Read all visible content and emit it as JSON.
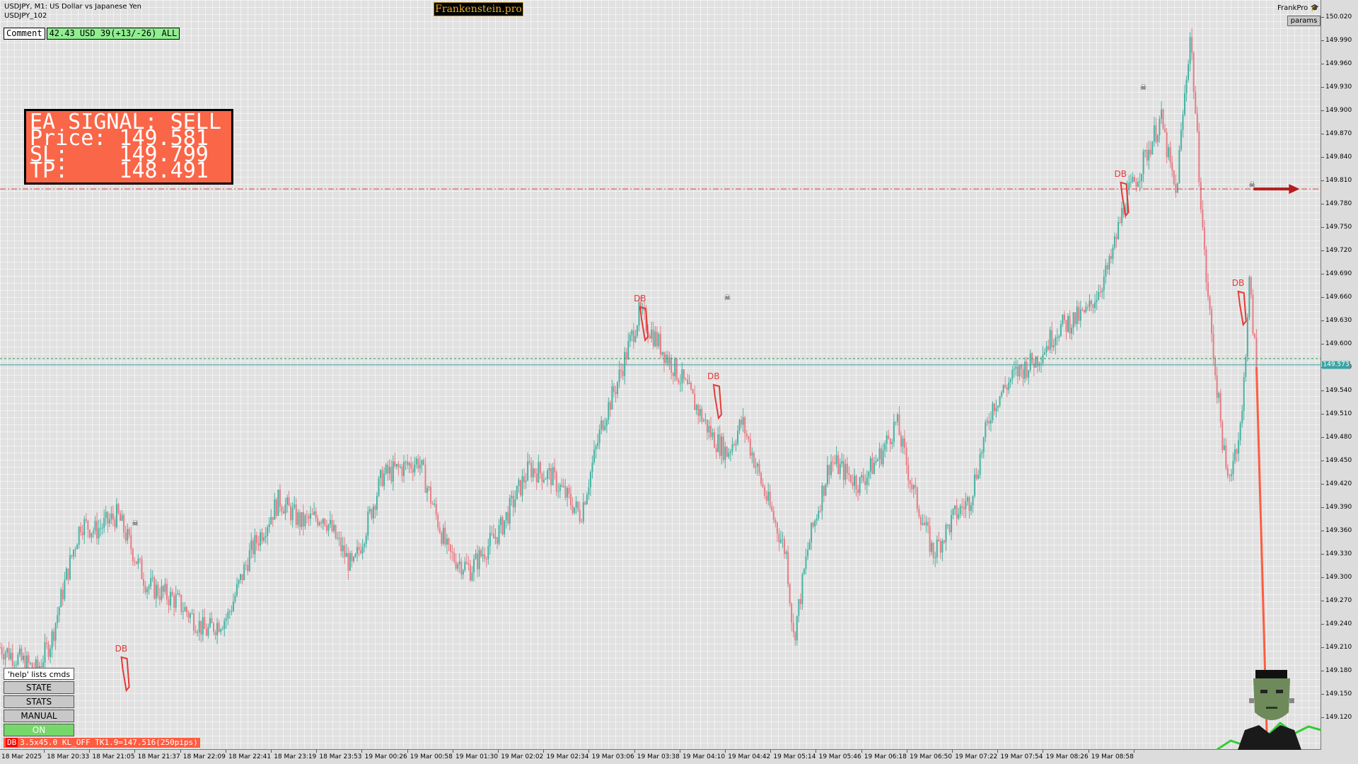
{
  "header": {
    "symbol_line": "USDJPY, M1:  US Dollar vs Japanese Yen",
    "chart_id": "USDJPY_102",
    "brand": "Frankenstein.pro",
    "account_label": "FrankPro",
    "params_button": "params"
  },
  "comment": {
    "label": "Comment",
    "stats": "42.43 USD 39(+13/-26) ALL"
  },
  "signal": {
    "line1": "EA SIGNAL: SELL",
    "line2": "Price: 149.581",
    "line3": "SL:    149.799",
    "line4": "TP:    148.491"
  },
  "commands": {
    "help": "'help' lists cmds",
    "state": "STATE",
    "stats": "STATS",
    "manual": "MANUAL",
    "on": "ON"
  },
  "status": {
    "db_tag": "DB",
    "text": "3.5x45.0 KL_OFF TK1.9=147.516(250pips)"
  },
  "pattern_label": "DB",
  "y_axis": {
    "labels": [
      "150.020",
      "149.990",
      "149.960",
      "149.930",
      "149.900",
      "149.870",
      "149.840",
      "149.810",
      "149.780",
      "149.750",
      "149.720",
      "149.690",
      "149.660",
      "149.630",
      "149.600",
      "149.570",
      "149.540",
      "149.510",
      "149.480",
      "149.450",
      "149.420",
      "149.390",
      "149.360",
      "149.330",
      "149.300",
      "149.270",
      "149.240",
      "149.210",
      "149.180",
      "149.150",
      "149.120"
    ],
    "current_price": "149.573"
  },
  "x_axis": {
    "labels": [
      "18 Mar 2025",
      "18 Mar 20:33",
      "18 Mar 21:05",
      "18 Mar 21:37",
      "18 Mar 22:09",
      "18 Mar 22:41",
      "18 Mar 23:19",
      "18 Mar 23:53",
      "19 Mar 00:26",
      "19 Mar 00:58",
      "19 Mar 01:30",
      "19 Mar 02:02",
      "19 Mar 02:34",
      "19 Mar 03:06",
      "19 Mar 03:38",
      "19 Mar 04:10",
      "19 Mar 04:42",
      "19 Mar 05:14",
      "19 Mar 05:46",
      "19 Mar 06:18",
      "19 Mar 06:50",
      "19 Mar 07:22",
      "19 Mar 07:54",
      "19 Mar 08:26",
      "19 Mar 08:58"
    ]
  },
  "chart_data": {
    "type": "candlestick",
    "price_range": [
      149.1,
      150.03
    ],
    "bull_color": "#47b2a2",
    "bear_color": "#e77c85",
    "sl_line": 149.799,
    "entry_line": 149.581,
    "current_price": 149.573,
    "close_path": [
      [
        0,
        149.21
      ],
      [
        2.5,
        149.18
      ],
      [
        3.5,
        149.22
      ],
      [
        4.5,
        149.3
      ],
      [
        5.5,
        149.37
      ],
      [
        6.5,
        149.36
      ],
      [
        8,
        149.38
      ],
      [
        10,
        149.29
      ],
      [
        12,
        149.27
      ],
      [
        14,
        149.23
      ],
      [
        15.5,
        149.25
      ],
      [
        17,
        149.33
      ],
      [
        19,
        149.4
      ],
      [
        20.5,
        149.37
      ],
      [
        22,
        149.38
      ],
      [
        24,
        149.31
      ],
      [
        26,
        149.43
      ],
      [
        28.5,
        149.45
      ],
      [
        30.5,
        149.33
      ],
      [
        32,
        149.31
      ],
      [
        34,
        149.36
      ],
      [
        36,
        149.44
      ],
      [
        37.5,
        149.43
      ],
      [
        39.5,
        149.38
      ],
      [
        41,
        149.5
      ],
      [
        42,
        149.55
      ],
      [
        43.5,
        149.64
      ],
      [
        44.5,
        149.61
      ],
      [
        46.5,
        149.55
      ],
      [
        48.5,
        149.48
      ],
      [
        49.5,
        149.46
      ],
      [
        50.5,
        149.5
      ],
      [
        52,
        149.41
      ],
      [
        53.5,
        149.33
      ],
      [
        54,
        149.22
      ],
      [
        55,
        149.34
      ],
      [
        56.5,
        149.45
      ],
      [
        58.5,
        149.42
      ],
      [
        60,
        149.46
      ],
      [
        61,
        149.5
      ],
      [
        62,
        149.42
      ],
      [
        63.5,
        149.33
      ],
      [
        65,
        149.38
      ],
      [
        66,
        149.4
      ],
      [
        67.5,
        149.52
      ],
      [
        69,
        149.56
      ],
      [
        70.5,
        149.58
      ],
      [
        72,
        149.62
      ],
      [
        74,
        149.64
      ],
      [
        75.5,
        149.7
      ],
      [
        76.5,
        149.78
      ],
      [
        77.5,
        149.82
      ],
      [
        79,
        149.89
      ],
      [
        80,
        149.79
      ],
      [
        81,
        150.0
      ],
      [
        82,
        149.7
      ],
      [
        82.5,
        149.6
      ],
      [
        83.5,
        149.42
      ],
      [
        84.5,
        149.5
      ],
      [
        85,
        149.68
      ],
      [
        85.5,
        149.57
      ]
    ],
    "patterns": [
      {
        "label": "DB",
        "x": 8.5,
        "price": 149.2
      },
      {
        "label": "DB",
        "x": 43.8,
        "price": 149.65
      },
      {
        "label": "DB",
        "x": 48.8,
        "price": 149.55
      },
      {
        "label": "DB",
        "x": 76.5,
        "price": 149.81
      },
      {
        "label": "DB",
        "x": 84.5,
        "price": 149.67
      }
    ],
    "skull_markers": [
      {
        "x": 9.2,
        "price": 149.37
      },
      {
        "x": 49.5,
        "price": 149.66
      },
      {
        "x": 77.8,
        "price": 149.93
      },
      {
        "x": 85.2,
        "price": 149.805
      }
    ],
    "forecast_line": [
      [
        85.5,
        149.57
      ],
      [
        86.2,
        149.1
      ]
    ],
    "x_ticks": 25
  }
}
